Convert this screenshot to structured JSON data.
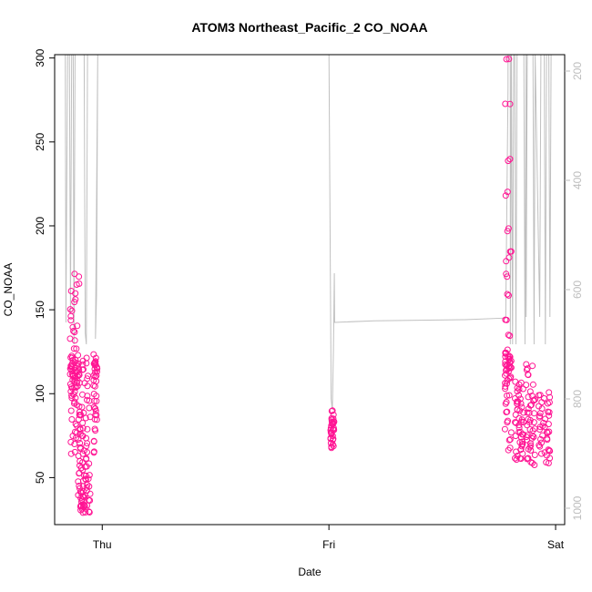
{
  "chart_data": {
    "type": "scatter",
    "title": "ATOM3 Northeast_Pacific_2 CO_NOAA",
    "xlabel": "Date",
    "ylabel": "CO_NOAA",
    "x_ticks": [
      {
        "label": "Thu",
        "day": 0
      },
      {
        "label": "Fri",
        "day": 1
      },
      {
        "label": "Sat",
        "day": 2
      }
    ],
    "xlim_days": [
      -0.21,
      2.04
    ],
    "ylim": [
      22,
      302
    ],
    "y_ticks": [
      50,
      100,
      150,
      200,
      250,
      300
    ],
    "y2_ticks": [
      200,
      400,
      600,
      800,
      1000
    ],
    "y2lim": [
      170,
      1030
    ],
    "y2_reversed": true,
    "point_color": "#ff1493",
    "line_color": "#c0c0c0",
    "clusters": [
      {
        "x_center": -0.12,
        "x_spread": 0.022,
        "y_values": [
          65,
          70,
          74,
          78,
          82,
          86,
          90,
          94,
          96,
          98,
          100,
          102,
          104,
          105,
          106,
          107,
          108,
          109,
          110,
          110,
          111,
          112,
          112,
          113,
          114,
          115,
          116,
          117,
          118,
          119,
          120,
          122,
          124,
          128,
          132,
          136,
          140,
          145,
          150,
          155,
          160,
          165,
          170
        ]
      },
      {
        "x_center": -0.095,
        "x_spread": 0.012,
        "y_values": [
          30,
          32,
          34,
          36,
          38,
          40,
          42,
          45,
          48,
          52,
          56,
          60,
          64,
          68,
          72,
          76,
          80,
          84,
          88,
          92
        ]
      },
      {
        "x_center": -0.07,
        "x_spread": 0.018,
        "y_values": [
          28,
          30,
          32,
          34,
          36,
          38,
          40,
          42,
          44,
          46,
          48,
          50,
          52,
          55,
          58,
          62,
          66,
          70,
          75,
          80,
          85,
          90,
          95,
          100,
          105,
          110,
          115,
          118,
          120
        ]
      },
      {
        "x_center": -0.03,
        "x_spread": 0.008,
        "y_values": [
          66,
          72,
          78,
          84,
          88,
          90,
          92,
          95,
          100,
          105,
          108,
          110,
          112,
          114,
          115,
          116,
          117,
          118,
          120,
          122
        ]
      },
      {
        "x_center": 1.015,
        "x_spread": 0.008,
        "y_values": [
          67,
          70,
          72,
          74,
          75,
          76,
          77,
          78,
          79,
          80,
          81,
          82,
          83,
          84,
          85,
          86,
          89
        ]
      },
      {
        "x_center": 1.79,
        "x_spread": 0.015,
        "y_values": [
          67,
          72,
          78,
          84,
          90,
          95,
          100,
          104,
          106,
          108,
          110,
          112,
          113,
          114,
          115,
          116,
          117,
          118,
          119,
          120,
          121,
          122,
          123,
          124,
          125,
          135,
          145,
          160,
          170,
          180,
          186,
          198,
          219,
          239,
          272,
          298
        ]
      },
      {
        "x_center": 1.84,
        "x_spread": 0.02,
        "y_values": [
          60,
          62,
          64,
          66,
          68,
          70,
          72,
          74,
          76,
          78,
          80,
          82,
          84,
          86,
          88,
          90,
          92,
          94,
          96,
          98,
          100,
          102,
          104,
          106
        ]
      },
      {
        "x_center": 1.89,
        "x_spread": 0.02,
        "y_values": [
          58,
          60,
          62,
          65,
          68,
          70,
          72,
          74,
          76,
          78,
          80,
          82,
          85,
          88,
          90,
          92,
          95,
          98,
          100,
          105,
          110,
          115,
          118
        ]
      },
      {
        "x_center": 1.95,
        "x_spread": 0.025,
        "y_values": [
          60,
          62,
          64,
          66,
          68,
          70,
          72,
          74,
          76,
          78,
          80,
          82,
          84,
          86,
          88,
          90,
          92,
          94,
          96,
          98,
          100
        ]
      }
    ],
    "pressure_line": [
      [
        -0.163,
        170
      ],
      [
        -0.16,
        660
      ],
      [
        -0.153,
        170
      ],
      [
        -0.145,
        170
      ],
      [
        -0.14,
        640
      ],
      [
        -0.135,
        170
      ],
      [
        -0.128,
        170
      ],
      [
        -0.125,
        700
      ],
      [
        -0.12,
        170
      ],
      [
        -0.08,
        170
      ],
      [
        -0.075,
        680
      ],
      [
        -0.07,
        700
      ],
      [
        -0.065,
        170
      ],
      [
        -0.02,
        170
      ],
      [
        -0.03,
        690
      ],
      [
        -0.025,
        610
      ],
      [
        -0.02,
        170
      ],
      [
        0.0,
        170
      ],
      [
        0.3,
        170
      ],
      [
        0.6,
        170
      ],
      [
        1.0,
        170
      ],
      [
        1.01,
        800
      ],
      [
        1.015,
        820
      ],
      [
        1.02,
        710
      ],
      [
        1.024,
        570
      ],
      [
        1.025,
        660
      ],
      [
        1.2,
        657
      ],
      [
        1.6,
        655
      ],
      [
        1.78,
        652
      ],
      [
        1.79,
        230
      ],
      [
        1.79,
        170
      ],
      [
        1.8,
        170
      ],
      [
        1.8,
        700
      ],
      [
        1.805,
        170
      ],
      [
        1.81,
        700
      ],
      [
        1.815,
        170
      ],
      [
        1.82,
        170
      ],
      [
        1.825,
        700
      ],
      [
        1.83,
        170
      ],
      [
        1.86,
        170
      ],
      [
        1.865,
        700
      ],
      [
        1.87,
        170
      ],
      [
        1.87,
        650
      ],
      [
        1.875,
        170
      ],
      [
        1.9,
        170
      ],
      [
        1.905,
        700
      ],
      [
        1.91,
        170
      ],
      [
        1.93,
        650
      ],
      [
        1.935,
        170
      ],
      [
        1.95,
        170
      ],
      [
        1.955,
        700
      ],
      [
        1.96,
        170
      ],
      [
        1.97,
        170
      ],
      [
        1.975,
        650
      ],
      [
        1.98,
        170
      ]
    ]
  }
}
